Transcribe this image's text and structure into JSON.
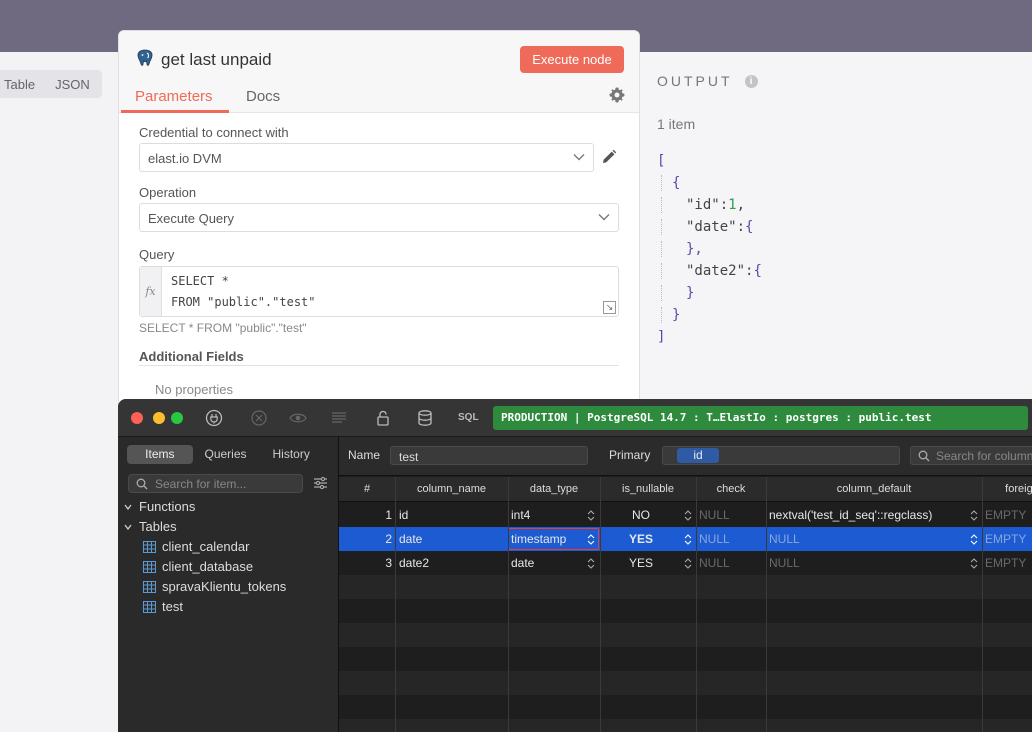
{
  "left_panel": {
    "tabs": [
      "Table",
      "JSON"
    ]
  },
  "node": {
    "title": "get last unpaid",
    "execute_label": "Execute node",
    "tabs": [
      "Parameters",
      "Docs"
    ],
    "credential_label": "Credential to connect with",
    "credential_value": "elast.io DVM",
    "operation_label": "Operation",
    "operation_value": "Execute Query",
    "query_label": "Query",
    "fx_label": "fx",
    "query_lines": [
      "SELECT *",
      "FROM \"public\".\"test\""
    ],
    "query_preview": "SELECT * FROM \"public\".\"test\"",
    "additional_fields_label": "Additional Fields",
    "no_properties": "No properties"
  },
  "output": {
    "title": "OUTPUT",
    "info_glyph": "i",
    "count": "1 item",
    "json": {
      "open": "[",
      "obj_open": "{",
      "id_key": "\"id\"",
      "id_value": "1",
      "comma": ",",
      "colon": ":",
      "date_key": "\"date\"",
      "date2_key": "\"date2\"",
      "brace_close_comma": "},",
      "obj_close": "}",
      "close": "]"
    }
  },
  "tableplus": {
    "sql_label": "SQL",
    "connection": "PRODUCTION | PostgreSQL 14.7 : T…ElastIo : postgres : public.test",
    "sidebar_tabs": [
      "Items",
      "Queries",
      "History"
    ],
    "search_placeholder": "Search for item...",
    "tree": {
      "functions": "Functions",
      "tables": "Tables",
      "table_items": [
        "client_calendar",
        "client_database",
        "spravaKlientu_tokens",
        "test"
      ]
    },
    "structure": {
      "name_label": "Name",
      "name_value": "test",
      "primary_label": "Primary",
      "primary_value": "id",
      "search_placeholder": "Search for column",
      "columns": [
        "#",
        "column_name",
        "data_type",
        "is_nullable",
        "check",
        "column_default",
        "foreign"
      ],
      "rows": [
        {
          "num": "1",
          "column_name": "id",
          "data_type": "int4",
          "is_nullable": "NO",
          "check": "NULL",
          "column_default": "nextval('test_id_seq'::regclass)",
          "foreign": "EMPTY"
        },
        {
          "num": "2",
          "column_name": "date",
          "data_type": "timestamp",
          "is_nullable": "YES",
          "check": "NULL",
          "column_default": "NULL",
          "foreign": "EMPTY"
        },
        {
          "num": "3",
          "column_name": "date2",
          "data_type": "date",
          "is_nullable": "YES",
          "check": "NULL",
          "column_default": "NULL",
          "foreign": "EMPTY"
        }
      ]
    }
  },
  "colors": {
    "accent": "#ef6a58",
    "production_badge": "#2e8a3c",
    "selection": "#1c5bd1"
  }
}
